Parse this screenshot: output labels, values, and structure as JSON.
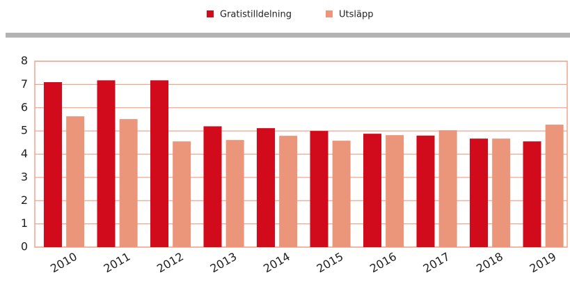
{
  "chart_data": {
    "type": "bar",
    "categories": [
      "2010",
      "2011",
      "2012",
      "2013",
      "2014",
      "2015",
      "2016",
      "2017",
      "2018",
      "2019"
    ],
    "series": [
      {
        "name": "Gratistilldelning",
        "color": "#d10a1c",
        "values": [
          7.1,
          7.18,
          7.18,
          5.2,
          5.12,
          5.0,
          4.88,
          4.8,
          4.67,
          4.55
        ]
      },
      {
        "name": "Utsläpp",
        "color": "#eb957b",
        "values": [
          5.63,
          5.51,
          4.55,
          4.61,
          4.79,
          4.58,
          4.82,
          5.03,
          4.67,
          5.27
        ]
      }
    ],
    "ylim": [
      0,
      8
    ],
    "yticks": [
      0,
      1,
      2,
      3,
      4,
      5,
      6,
      7,
      8
    ],
    "grid": true,
    "legend": "top"
  }
}
